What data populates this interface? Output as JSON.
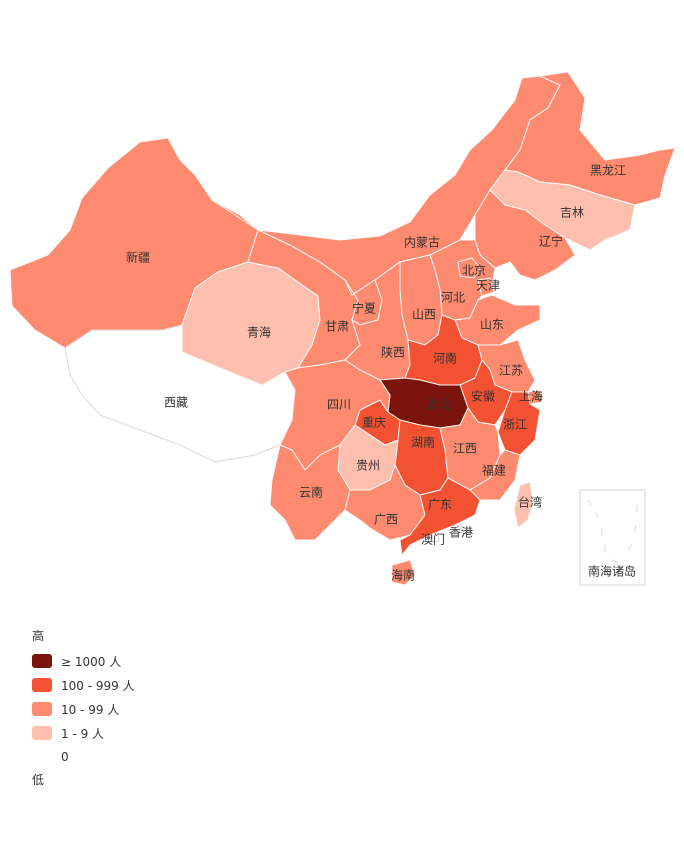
{
  "colors": {
    "level_ge1000": "#7a140c",
    "level_100_999": "#f25132",
    "level_10_99": "#fe8a6f",
    "level_1_9": "#ffbfae",
    "level_0": "#ffffff"
  },
  "provinces": {
    "xinjiang": {
      "name": "新疆",
      "level": "10-99"
    },
    "xizang": {
      "name": "西藏",
      "level": "0"
    },
    "qinghai": {
      "name": "青海",
      "level": "1-9"
    },
    "gansu": {
      "name": "甘肃",
      "level": "10-99"
    },
    "ningxia": {
      "name": "宁夏",
      "level": "10-99"
    },
    "neimenggu": {
      "name": "内蒙古",
      "level": "10-99"
    },
    "heilongjiang": {
      "name": "黑龙江",
      "level": "10-99"
    },
    "jilin": {
      "name": "吉林",
      "level": "1-9"
    },
    "liaoning": {
      "name": "辽宁",
      "level": "10-99"
    },
    "beijing": {
      "name": "北京",
      "level": "10-99"
    },
    "tianjin": {
      "name": "天津",
      "level": "10-99"
    },
    "hebei": {
      "name": "河北",
      "level": "10-99"
    },
    "shanxi": {
      "name": "山西",
      "level": "10-99"
    },
    "shandong": {
      "name": "山东",
      "level": "10-99"
    },
    "shaanxi": {
      "name": "陕西",
      "level": "10-99"
    },
    "henan": {
      "name": "河南",
      "level": "100-999"
    },
    "jiangsu": {
      "name": "江苏",
      "level": "10-99"
    },
    "anhui": {
      "name": "安徽",
      "level": "100-999"
    },
    "shanghai": {
      "name": "上海",
      "level": "10-99"
    },
    "hubei": {
      "name": "湖北",
      "level": ">=1000"
    },
    "sichuan": {
      "name": "四川",
      "level": "10-99"
    },
    "chongqing": {
      "name": "重庆",
      "level": "100-999"
    },
    "zhejiang": {
      "name": "浙江",
      "level": "100-999"
    },
    "hunan": {
      "name": "湖南",
      "level": "100-999"
    },
    "jiangxi": {
      "name": "江西",
      "level": "10-99"
    },
    "guizhou": {
      "name": "贵州",
      "level": "1-9"
    },
    "fujian": {
      "name": "福建",
      "level": "10-99"
    },
    "yunnan": {
      "name": "云南",
      "level": "10-99"
    },
    "guangxi": {
      "name": "广西",
      "level": "10-99"
    },
    "guangdong": {
      "name": "广东",
      "level": "100-999"
    },
    "taiwan": {
      "name": "台湾",
      "level": "1-9"
    },
    "hongkong": {
      "name": "香港",
      "level": "0"
    },
    "macau": {
      "name": "澳门",
      "level": "0"
    },
    "hainan": {
      "name": "海南",
      "level": "10-99"
    },
    "nanhai": {
      "name": "南海诸岛",
      "level": "0"
    }
  },
  "legend": {
    "high_label": "高",
    "low_label": "低",
    "items": [
      {
        "label": "≥ 1000 人",
        "color": "#7a140c"
      },
      {
        "label": "100 - 999 人",
        "color": "#f25132"
      },
      {
        "label": "10 - 99 人",
        "color": "#fe8a6f"
      },
      {
        "label": "1 - 9 人",
        "color": "#ffbfae"
      },
      {
        "label": "0",
        "color": "#ffffff"
      }
    ]
  }
}
